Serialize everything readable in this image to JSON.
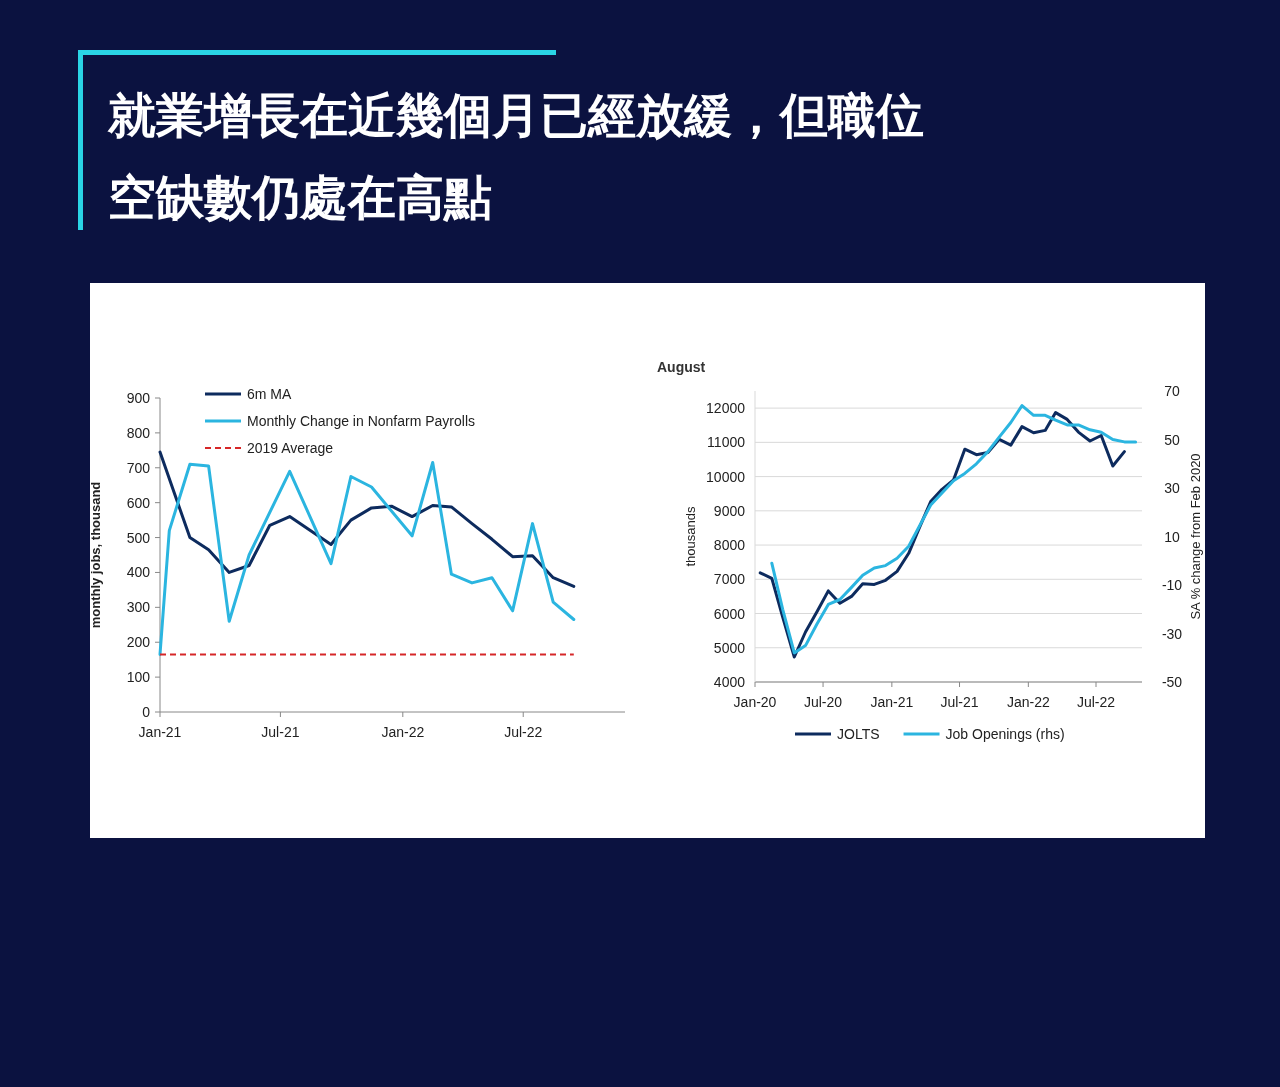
{
  "chart_data": [
    {
      "type": "line",
      "title": "就業增長在近幾個月已經放緩，但職位空缺數仍處在高點",
      "ylabel": "monthly jobs, thousand",
      "xlim": [
        "2021-01-01",
        "2022-12-01"
      ],
      "xticks": [
        {
          "value": "2021-01-01",
          "label": "Jan-21"
        },
        {
          "value": "2021-07-01",
          "label": "Jul-21"
        },
        {
          "value": "2022-01-01",
          "label": "Jan-22"
        },
        {
          "value": "2022-07-01",
          "label": "Jul-22"
        }
      ],
      "ylim": [
        0,
        900
      ],
      "yticks": [
        0,
        100,
        200,
        300,
        400,
        500,
        600,
        700,
        800,
        900
      ],
      "grid": false,
      "legend": "top left",
      "series": [
        {
          "name": "6m MA",
          "color": "#0d2b5e",
          "x": [
            "2021-01-01",
            "2021-02-15",
            "2021-03-15",
            "2021-04-15",
            "2021-05-15",
            "2021-06-15",
            "2021-07-15",
            "2021-09-15",
            "2021-10-15",
            "2021-11-15",
            "2021-12-15",
            "2022-01-15",
            "2022-02-15",
            "2022-03-15",
            "2022-04-15",
            "2022-05-15",
            "2022-06-15",
            "2022-07-15",
            "2022-08-15",
            "2022-09-15"
          ],
          "values": [
            745,
            500,
            465,
            400,
            420,
            535,
            560,
            480,
            550,
            585,
            590,
            560,
            592,
            588,
            540,
            495,
            445,
            448,
            385,
            360
          ]
        },
        {
          "name": "Monthly Change in Nonfarm Payrolls",
          "color": "#2bb5e0",
          "x": [
            "2021-01-01",
            "2021-01-15",
            "2021-02-15",
            "2021-03-15",
            "2021-04-15",
            "2021-05-15",
            "2021-07-15",
            "2021-09-15",
            "2021-10-15",
            "2021-11-15",
            "2022-01-15",
            "2022-02-15",
            "2022-03-15",
            "2022-04-15",
            "2022-05-15",
            "2022-06-15",
            "2022-07-15",
            "2022-08-15",
            "2022-09-15"
          ],
          "values": [
            165,
            520,
            710,
            705,
            260,
            450,
            690,
            425,
            675,
            645,
            505,
            715,
            395,
            370,
            385,
            290,
            540,
            315,
            265
          ]
        },
        {
          "name": "2019 Average",
          "color": "#d62728",
          "line_style": "dashed",
          "x": [
            "2021-01-01",
            "2022-09-15"
          ],
          "values": [
            165,
            165
          ]
        }
      ]
    },
    {
      "type": "line",
      "title": "August",
      "ylabel": "thousands",
      "y2label": "SA % change from Feb 2020",
      "xlim": [
        "2020-01-01",
        "2022-11-01"
      ],
      "xticks": [
        {
          "value": "2020-01-01",
          "label": "Jan-20"
        },
        {
          "value": "2020-07-01",
          "label": "Jul-20"
        },
        {
          "value": "2021-01-01",
          "label": "Jan-21"
        },
        {
          "value": "2021-07-01",
          "label": "Jul-21"
        },
        {
          "value": "2022-01-01",
          "label": "Jan-22"
        },
        {
          "value": "2022-07-01",
          "label": "Jul-22"
        }
      ],
      "ylim": [
        4000,
        12500
      ],
      "yticks": [
        4000,
        5000,
        6000,
        7000,
        8000,
        9000,
        10000,
        11000,
        12000
      ],
      "y2lim": [
        -50,
        70
      ],
      "y2ticks": [
        -50,
        -30,
        -10,
        10,
        30,
        50,
        70
      ],
      "grid": "y",
      "legend": "bottom",
      "series": [
        {
          "name": "JOLTS",
          "color": "#0d2b5e",
          "x": [
            "2020-01-15",
            "2020-02-15",
            "2020-03-15",
            "2020-04-15",
            "2020-05-15",
            "2020-06-15",
            "2020-07-15",
            "2020-08-15",
            "2020-09-15",
            "2020-10-15",
            "2020-11-15",
            "2020-12-15",
            "2021-01-15",
            "2021-02-15",
            "2021-03-15",
            "2021-04-15",
            "2021-05-15",
            "2021-06-15",
            "2021-07-15",
            "2021-08-15",
            "2021-09-15",
            "2021-10-15",
            "2021-11-15",
            "2021-12-15",
            "2022-01-15",
            "2022-02-15",
            "2022-03-15",
            "2022-04-15",
            "2022-05-15",
            "2022-06-15",
            "2022-07-15",
            "2022-08-15",
            "2022-09-15"
          ],
          "values": [
            7190,
            7030,
            5900,
            4730,
            5460,
            6060,
            6660,
            6300,
            6500,
            6870,
            6850,
            6970,
            7230,
            7760,
            8490,
            9270,
            9630,
            9900,
            10800,
            10640,
            10700,
            11090,
            10920,
            11460,
            11280,
            11350,
            11870,
            11670,
            11300,
            11040,
            11200,
            10310,
            10730
          ]
        },
        {
          "name": "Job Openings (rhs)",
          "color": "#2bb5e0",
          "axis": "y2",
          "x": [
            "2020-02-15",
            "2020-03-15",
            "2020-04-15",
            "2020-05-15",
            "2020-06-15",
            "2020-07-15",
            "2020-08-15",
            "2020-09-15",
            "2020-10-15",
            "2020-11-15",
            "2020-12-15",
            "2021-01-15",
            "2021-02-15",
            "2021-03-15",
            "2021-04-15",
            "2021-05-15",
            "2021-06-15",
            "2021-07-15",
            "2021-08-15",
            "2021-09-15",
            "2021-10-15",
            "2021-11-15",
            "2021-12-15",
            "2022-01-15",
            "2022-02-15",
            "2022-03-15",
            "2022-04-15",
            "2022-05-15",
            "2022-06-15",
            "2022-07-15",
            "2022-08-15",
            "2022-09-15",
            "2022-10-15"
          ],
          "values": [
            -1,
            -20,
            -38,
            -35,
            -26,
            -18,
            -16,
            -11,
            -6,
            -3,
            -2,
            1,
            6,
            14,
            23,
            28,
            33,
            36,
            40,
            45,
            51,
            57,
            64,
            60,
            60,
            58,
            56,
            56,
            54,
            53,
            50,
            49,
            49
          ]
        }
      ]
    }
  ]
}
